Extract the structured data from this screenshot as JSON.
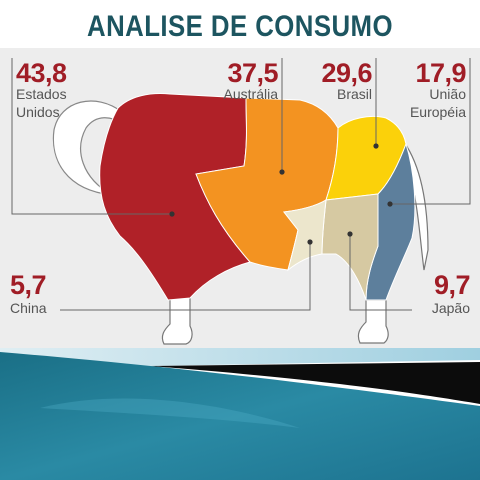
{
  "title": "ANALISE DE CONSUMO",
  "regions": [
    {
      "id": "eua",
      "value": "43,8",
      "label_line1": "Estados",
      "label_line2": "Unidos",
      "color": "#b02128"
    },
    {
      "id": "australia",
      "value": "37,5",
      "label_line1": "Austrália",
      "label_line2": "",
      "color": "#f39321"
    },
    {
      "id": "brasil",
      "value": "29,6",
      "label_line1": "Brasil",
      "label_line2": "",
      "color": "#fbd10a"
    },
    {
      "id": "ue",
      "value": "17,9",
      "label_line1": "União",
      "label_line2": "Européia",
      "color": "#5d7f9c"
    },
    {
      "id": "china",
      "value": "5,7",
      "label_line1": "China",
      "label_line2": "",
      "color": "#ece6cc"
    },
    {
      "id": "japao",
      "value": "9,7",
      "label_line1": "Japão",
      "label_line2": "",
      "color": "#d6c9a2"
    }
  ]
}
